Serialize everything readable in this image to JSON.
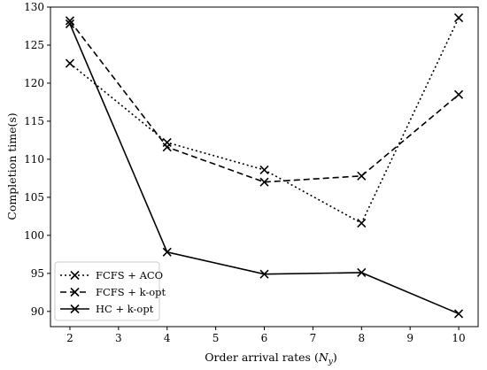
{
  "chart_data": {
    "type": "line",
    "x": [
      2,
      4,
      6,
      8,
      10
    ],
    "series": [
      {
        "name": "FCFS + ACO",
        "values": [
          122.6,
          112.2,
          108.6,
          101.6,
          128.6
        ],
        "dash": "2,3"
      },
      {
        "name": "FCFS + k-opt",
        "values": [
          128.2,
          111.6,
          107.0,
          107.8,
          118.5
        ],
        "dash": "7,4"
      },
      {
        "name": "HC + k-opt",
        "values": [
          127.8,
          97.8,
          94.9,
          95.1,
          89.7
        ],
        "dash": ""
      }
    ],
    "xlabel_main": "Order arrival rates (",
    "xlabel_var": "N",
    "xlabel_sub": "y",
    "xlabel_end": ")",
    "ylabel": "Completion time(s)",
    "xlim": [
      1.6,
      10.4
    ],
    "ylim": [
      88.0,
      130.0
    ],
    "xticks": [
      2,
      3,
      4,
      5,
      6,
      7,
      8,
      9,
      10
    ],
    "yticks": [
      90,
      95,
      100,
      105,
      110,
      115,
      120,
      125,
      130
    ],
    "grid": false,
    "legend_position": "bottom-left",
    "marker": "x",
    "line_color": "#000000"
  }
}
